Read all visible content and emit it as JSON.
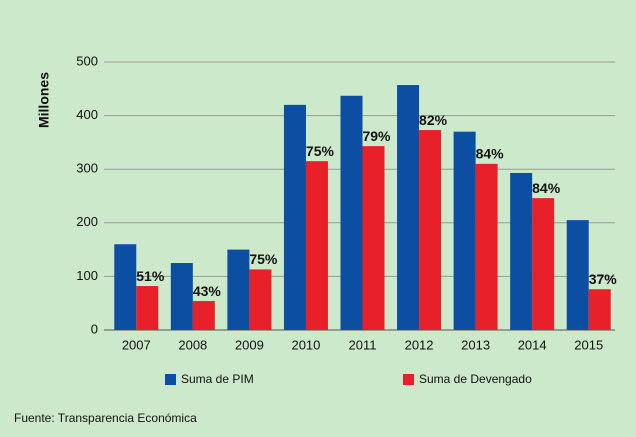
{
  "chart_data": {
    "type": "bar",
    "y_axis_label": "Millones",
    "categories": [
      "2007",
      "2008",
      "2009",
      "2010",
      "2011",
      "2012",
      "2013",
      "2014",
      "2015"
    ],
    "series": [
      {
        "name": "Suma de PIM",
        "color": "#0b4ea2",
        "values": [
          160,
          125,
          150,
          420,
          437,
          457,
          370,
          293,
          205
        ]
      },
      {
        "name": "Suma de Devengado",
        "color": "#e8202a",
        "values": [
          82,
          54,
          113,
          315,
          343,
          373,
          310,
          246,
          76
        ]
      }
    ],
    "execution_labels": [
      "51%",
      "43%",
      "75%",
      "75%",
      "79%",
      "82%",
      "84%",
      "84%",
      "37%"
    ],
    "ylim": [
      0,
      500
    ],
    "yticks": [
      0,
      100,
      200,
      300,
      400,
      500
    ],
    "grid": true,
    "legend": "bottom",
    "source": "Fuente: Transparencia Económica"
  }
}
